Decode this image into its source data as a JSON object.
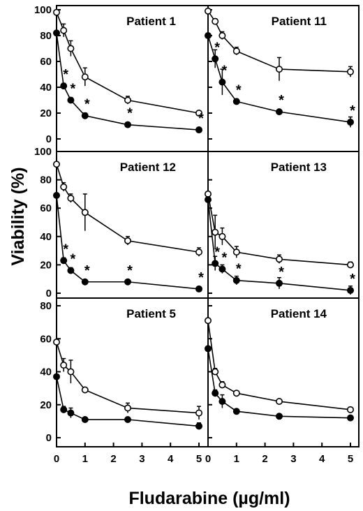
{
  "chart_data": {
    "type": "line",
    "ylabel": "Viability (%)",
    "xlabel": "Fludarabine (µg/ml)",
    "x_ticks": [
      0,
      1,
      2,
      3,
      4,
      5
    ],
    "x": [
      0,
      0.25,
      0.5,
      1,
      2.5,
      5
    ],
    "significance_marker": "*",
    "panels": [
      {
        "title": "Patient 1",
        "ylim": [
          0,
          100
        ],
        "y_ticks": [
          0,
          20,
          40,
          60,
          80,
          100
        ],
        "series": [
          {
            "marker": "open",
            "values": [
              98,
              84,
              70,
              48,
              30,
              20
            ],
            "err": [
              0,
              5,
              6,
              7,
              3,
              1
            ]
          },
          {
            "marker": "filled",
            "values": [
              82,
              41,
              30,
              18,
              11,
              7
            ],
            "err": [
              0,
              2,
              2,
              2,
              1,
              1
            ]
          }
        ],
        "star_at": [
          1,
          2,
          3,
          4,
          5
        ]
      },
      {
        "title": "Patient 11",
        "ylim": [
          0,
          100
        ],
        "y_ticks": [
          0,
          20,
          40,
          60,
          80,
          100
        ],
        "series": [
          {
            "marker": "open",
            "values": [
              99,
              91,
              80,
              68,
              54,
              52
            ],
            "err": [
              0,
              2,
              3,
              3,
              9,
              4
            ]
          },
          {
            "marker": "filled",
            "values": [
              80,
              62,
              44,
              29,
              21,
              13
            ],
            "err": [
              0,
              7,
              10,
              2,
              1,
              4
            ]
          }
        ],
        "star_at": [
          1,
          2,
          3,
          4,
          5
        ]
      },
      {
        "title": "Patient 12",
        "ylim": [
          0,
          100
        ],
        "y_ticks": [
          0,
          20,
          40,
          60,
          80,
          100
        ],
        "series": [
          {
            "marker": "open",
            "values": [
              91,
              75,
              67,
              57,
              37,
              29
            ],
            "err": [
              0,
              3,
              3,
              13,
              3,
              3
            ]
          },
          {
            "marker": "filled",
            "values": [
              69,
              23,
              16,
              8,
              8,
              3
            ],
            "err": [
              0,
              2,
              2,
              1,
              1,
              1
            ]
          }
        ],
        "star_at": [
          1,
          2,
          3,
          4,
          5
        ]
      },
      {
        "title": "Patient 13",
        "ylim": [
          0,
          100
        ],
        "y_ticks": [
          0,
          20,
          40,
          60,
          80,
          100
        ],
        "series": [
          {
            "marker": "open",
            "values": [
              70,
              43,
              40,
              29,
              24,
              20
            ],
            "err": [
              0,
              12,
              6,
              4,
              3,
              2
            ]
          },
          {
            "marker": "filled",
            "values": [
              66,
              21,
              17,
              9,
              7,
              2
            ],
            "err": [
              0,
              5,
              3,
              3,
              4,
              3
            ]
          }
        ],
        "star_at": [
          1,
          2,
          3,
          4,
          5
        ]
      },
      {
        "title": "Patient 5",
        "ylim": [
          0,
          80
        ],
        "y_ticks": [
          0,
          20,
          40,
          60,
          80
        ],
        "series": [
          {
            "marker": "open",
            "values": [
              58,
              44,
              40,
              29,
              18,
              15
            ],
            "err": [
              0,
              4,
              7,
              1,
              3,
              4
            ]
          },
          {
            "marker": "filled",
            "values": [
              37,
              17,
              15,
              11,
              11,
              7
            ],
            "err": [
              0,
              2,
              3,
              1,
              1,
              2
            ]
          }
        ],
        "star_at": []
      },
      {
        "title": "Patient 14",
        "ylim": [
          0,
          80
        ],
        "y_ticks": [
          0,
          20,
          40,
          60,
          80
        ],
        "series": [
          {
            "marker": "open",
            "values": [
              71,
              40,
              32,
              27,
              22,
              17
            ],
            "err": [
              0,
              2,
              2,
              1,
              1,
              1
            ]
          },
          {
            "marker": "filled",
            "values": [
              54,
              27,
              22,
              16,
              13,
              12
            ],
            "err": [
              0,
              2,
              4,
              1,
              1,
              1
            ]
          }
        ],
        "star_at": []
      }
    ]
  }
}
